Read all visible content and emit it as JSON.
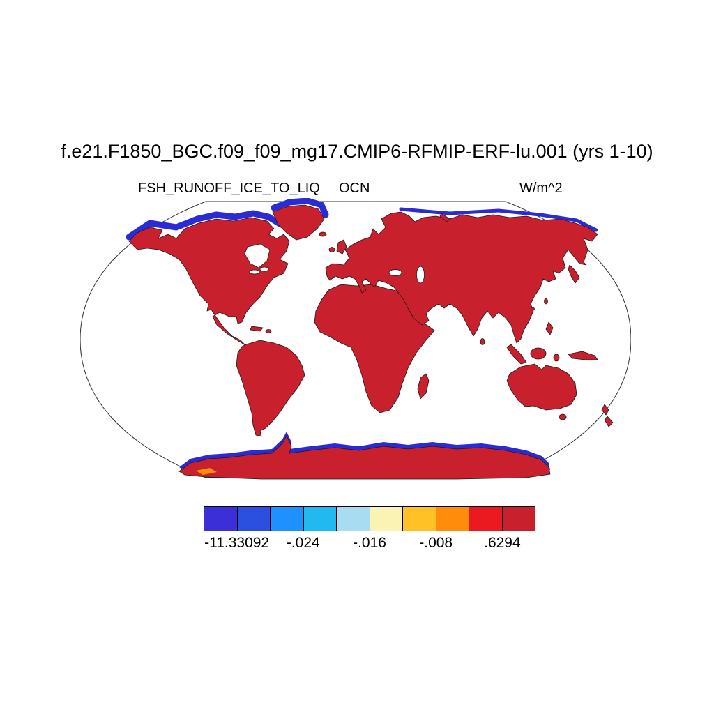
{
  "title": "f.e21.F1850_BGC.f09_f09_mg17.CMIP6-RFMIP-ERF-lu.001 (yrs 1-10)",
  "header": {
    "field_label": "FSH_RUNOFF_ICE_TO_LIQ",
    "grid_label": "OCN",
    "units_label": "W/m^2"
  },
  "map": {
    "land_color": "#C8202C",
    "fringe_color": "#2B2BD5",
    "patch_color": "#FF8C0A",
    "coast_color": "#1a1a1a",
    "ocean_color": "#FFFFFF",
    "outline_color": "#333333"
  },
  "colorbar": {
    "colors": [
      "#3B30D8",
      "#2B50E0",
      "#1E90FF",
      "#22B8F0",
      "#A8DCF0",
      "#FBF3B4",
      "#FFC125",
      "#FF8C0A",
      "#EB1A20",
      "#C8202C"
    ],
    "tick_labels": [
      "-11.33092",
      "-.024",
      "-.016",
      "-.008",
      ".6294"
    ]
  },
  "chart_data": {
    "type": "heatmap",
    "title": "f.e21.F1850_BGC.f09_f09_mg17.CMIP6-RFMIP-ERF-lu.001 (yrs 1-10)",
    "variable": "FSH_RUNOFF_ICE_TO_LIQ",
    "component_grid": "OCN",
    "units": "W/m^2",
    "projection": "global world map, Robinson-style outline",
    "data_min": -11.33092,
    "data_max": 0.6294,
    "colorbar_boundaries": [
      -11.33092,
      -0.028,
      -0.024,
      -0.02,
      -0.016,
      -0.012,
      -0.008,
      -0.004,
      0.6294
    ],
    "labeled_ticks": [
      "-11.33092",
      "-.024",
      "-.016",
      "-.008",
      ".6294"
    ],
    "colors": [
      "#3B30D8",
      "#2B50E0",
      "#1E90FF",
      "#22B8F0",
      "#A8DCF0",
      "#FBF3B4",
      "#FFC125",
      "#FF8C0A",
      "#EB1A20",
      "#C8202C"
    ],
    "legend_position": "horizontal labelbar below map",
    "summary": "Nearly all land grid cells fall in the highest bin (dark red, max .6294 W/m^2); narrow negative-value (blue) fringes appear along the Canadian Arctic coast, northern Greenland, the Siberian coast and the Antarctic coastline; oceans are blank (white)."
  }
}
